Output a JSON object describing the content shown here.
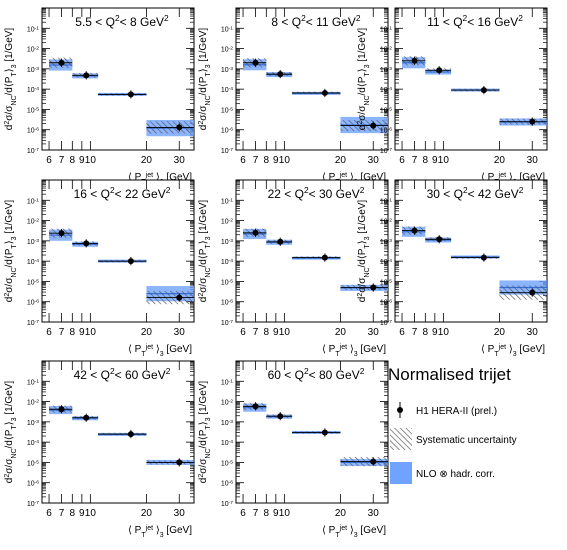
{
  "common": {
    "ylabel": "d²σ/σ_NC/d⟨P_T⟩₃ [1/GeV]",
    "xlabel": "⟨ P_T^jet ⟩₃ [GeV]",
    "y_ticks": [
      -7,
      -6,
      -5,
      -4,
      -3,
      -2,
      -1
    ],
    "x_ticks": [
      6,
      7,
      8,
      9,
      10,
      20,
      30
    ],
    "x_tick_labels": [
      "6",
      "7",
      "8",
      "9",
      "10",
      "20",
      "30"
    ]
  },
  "legend": {
    "title": "Normalised trijet",
    "data": "H1 HERA-II (prel.)",
    "syst": "Systematic uncertainty",
    "nlo": "NLO ⊗ hadr. corr."
  },
  "colors": {
    "nlo_band": "#6fa3ff",
    "nlo_line": "#2e6fe0",
    "hatch": "#555555",
    "marker": "#000000"
  },
  "chart_data": [
    {
      "type": "scatter",
      "title": "5.5 < Q² < 8 GeV²",
      "q2_low": "5.5",
      "q2_high": "8",
      "xlim": [
        5.5,
        36
      ],
      "ylim_log10": [
        -7,
        0
      ],
      "bins": [
        [
          6,
          8
        ],
        [
          8,
          11
        ],
        [
          11,
          20
        ],
        [
          20,
          36
        ]
      ],
      "x": [
        7,
        9.5,
        16.5,
        30
      ],
      "y": [
        0.002,
        0.00048,
        5.5e-05,
        1.3e-06
      ],
      "nlo": [
        0.00155,
        0.00045,
        5.5e-05,
        1.2e-06
      ],
      "nlo_err": [
        0.55,
        0.25,
        0.15,
        0.8
      ],
      "syst_err": [
        0.5,
        0.22,
        0.12,
        0.6
      ]
    },
    {
      "type": "scatter",
      "title": "8 < Q² < 11 GeV²",
      "q2_low": "8",
      "q2_high": "11",
      "xlim": [
        5.5,
        36
      ],
      "ylim_log10": [
        -7,
        0
      ],
      "bins": [
        [
          6,
          8
        ],
        [
          8,
          11
        ],
        [
          11,
          20
        ],
        [
          20,
          36
        ]
      ],
      "x": [
        7,
        9.5,
        16.5,
        30
      ],
      "y": [
        0.002,
        0.00055,
        6.5e-05,
        1.6e-06
      ],
      "nlo": [
        0.0016,
        0.00052,
        6.2e-05,
        1.7e-06
      ],
      "nlo_err": [
        0.55,
        0.25,
        0.15,
        0.8
      ],
      "syst_err": [
        0.45,
        0.2,
        0.12,
        0.55
      ]
    },
    {
      "type": "scatter",
      "title": "11 < Q² < 16 GeV²",
      "q2_low": "11",
      "q2_high": "16",
      "xlim": [
        5.5,
        36
      ],
      "ylim_log10": [
        -7,
        0
      ],
      "bins": [
        [
          6,
          8
        ],
        [
          8,
          11
        ],
        [
          11,
          20
        ],
        [
          20,
          36
        ]
      ],
      "x": [
        7,
        9.5,
        16.5,
        30
      ],
      "y": [
        0.0025,
        0.00085,
        9e-05,
        2.5e-06
      ],
      "nlo": [
        0.002,
        0.0007,
        9e-05,
        2.4e-06
      ],
      "nlo_err": [
        0.55,
        0.25,
        0.15,
        0.35
      ],
      "syst_err": [
        0.45,
        0.2,
        0.12,
        0.3
      ]
    },
    {
      "type": "scatter",
      "title": "16 < Q² < 22 GeV²",
      "q2_low": "16",
      "q2_high": "22",
      "xlim": [
        5.5,
        36
      ],
      "ylim_log10": [
        -7,
        0
      ],
      "bins": [
        [
          6,
          8
        ],
        [
          8,
          11
        ],
        [
          11,
          20
        ],
        [
          20,
          36
        ]
      ],
      "x": [
        7,
        9.5,
        16.5,
        30
      ],
      "y": [
        0.0024,
        0.00075,
        0.0001,
        1.6e-06
      ],
      "nlo": [
        0.0019,
        0.00068,
        0.0001,
        2.5e-06
      ],
      "nlo_err": [
        0.55,
        0.25,
        0.15,
        0.75
      ],
      "syst_err": [
        0.45,
        0.2,
        0.12,
        0.65
      ]
    },
    {
      "type": "scatter",
      "title": "22 < Q² < 30 GeV²",
      "q2_low": "22",
      "q2_high": "30",
      "xlim": [
        5.5,
        36
      ],
      "ylim_log10": [
        -7,
        0
      ],
      "bins": [
        [
          6,
          8
        ],
        [
          8,
          11
        ],
        [
          11,
          20
        ],
        [
          20,
          36
        ]
      ],
      "x": [
        7,
        9.5,
        16.5,
        30
      ],
      "y": [
        0.0025,
        0.0009,
        0.00015,
        5e-06
      ],
      "nlo": [
        0.0022,
        0.00085,
        0.00014,
        4.8e-06
      ],
      "nlo_err": [
        0.5,
        0.25,
        0.15,
        0.3
      ],
      "syst_err": [
        0.4,
        0.2,
        0.12,
        0.25
      ]
    },
    {
      "type": "scatter",
      "title": "30 < Q² < 42 GeV²",
      "q2_low": "30",
      "q2_high": "42",
      "xlim": [
        5.5,
        36
      ],
      "ylim_log10": [
        -7,
        0
      ],
      "bins": [
        [
          6,
          8
        ],
        [
          8,
          11
        ],
        [
          11,
          20
        ],
        [
          20,
          36
        ]
      ],
      "x": [
        7,
        9.5,
        16.5,
        30
      ],
      "y": [
        0.0032,
        0.0012,
        0.00015,
        2.8e-06
      ],
      "nlo": [
        0.0028,
        0.0011,
        0.00016,
        5e-06
      ],
      "nlo_err": [
        0.5,
        0.25,
        0.15,
        0.7
      ],
      "syst_err": [
        0.4,
        0.2,
        0.12,
        0.7
      ]
    },
    {
      "type": "scatter",
      "title": "42 < Q² < 60 GeV²",
      "q2_low": "42",
      "q2_high": "60",
      "xlim": [
        5.5,
        36
      ],
      "ylim_log10": [
        -7,
        0
      ],
      "bins": [
        [
          6,
          8
        ],
        [
          8,
          11
        ],
        [
          11,
          20
        ],
        [
          20,
          36
        ]
      ],
      "x": [
        7,
        9.5,
        16.5,
        30
      ],
      "y": [
        0.0042,
        0.0016,
        0.00025,
        1e-05
      ],
      "nlo": [
        0.0038,
        0.0015,
        0.00024,
        1e-05
      ],
      "nlo_err": [
        0.4,
        0.2,
        0.15,
        0.25
      ],
      "syst_err": [
        0.35,
        0.18,
        0.12,
        0.2
      ]
    },
    {
      "type": "scatter",
      "title": "60 < Q² < 80 GeV²",
      "q2_low": "60",
      "q2_high": "80",
      "xlim": [
        5.5,
        36
      ],
      "ylim_log10": [
        -7,
        0
      ],
      "bins": [
        [
          6,
          8
        ],
        [
          8,
          11
        ],
        [
          11,
          20
        ],
        [
          20,
          36
        ]
      ],
      "x": [
        7,
        9.5,
        16.5,
        30
      ],
      "y": [
        0.0058,
        0.0019,
        0.0003,
        1.1e-05
      ],
      "nlo": [
        0.005,
        0.0018,
        0.0003,
        1e-05
      ],
      "nlo_err": [
        0.4,
        0.2,
        0.15,
        0.35
      ],
      "syst_err": [
        0.35,
        0.18,
        0.12,
        0.45
      ]
    }
  ]
}
